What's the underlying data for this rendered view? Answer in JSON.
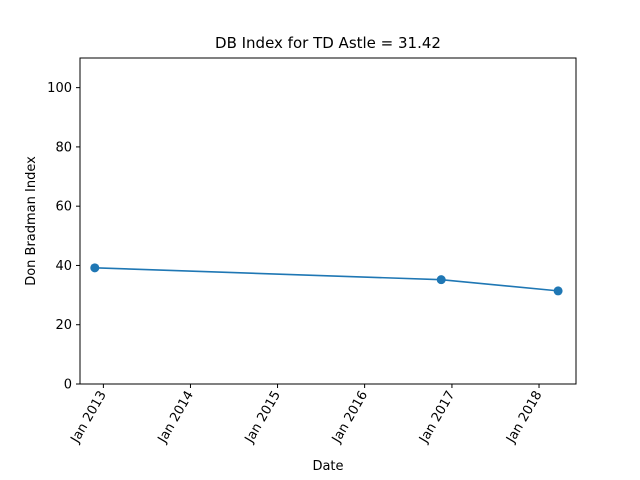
{
  "chart_data": {
    "type": "line",
    "title": "DB Index for TD Astle = 31.42",
    "xlabel": "Date",
    "ylabel": "Don Bradman Index",
    "xlim": [
      "2012-09-25",
      "2018-06-05"
    ],
    "ylim": [
      0,
      110
    ],
    "x_ticks": [
      {
        "date": "2013-01-01",
        "label": "Jan 2013"
      },
      {
        "date": "2014-01-01",
        "label": "Jan 2014"
      },
      {
        "date": "2015-01-01",
        "label": "Jan 2015"
      },
      {
        "date": "2016-01-01",
        "label": "Jan 2016"
      },
      {
        "date": "2017-01-01",
        "label": "Jan 2017"
      },
      {
        "date": "2018-01-01",
        "label": "Jan 2018"
      }
    ],
    "y_ticks": [
      0,
      20,
      40,
      60,
      80,
      100
    ],
    "grid": false,
    "series": [
      {
        "color": "#1f77b4",
        "marker": "circle",
        "x": [
          "2012-11-26",
          "2016-11-17",
          "2018-03-22"
        ],
        "values": [
          39.2,
          35.2,
          31.42
        ]
      }
    ]
  }
}
